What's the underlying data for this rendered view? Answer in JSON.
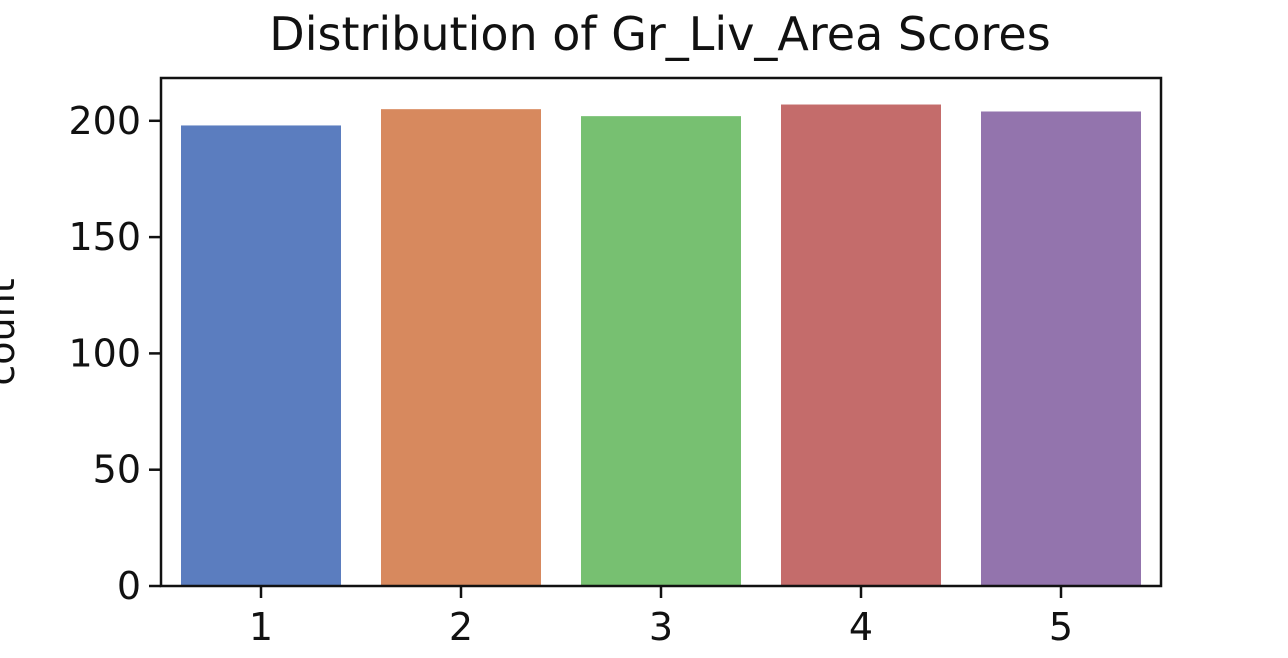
{
  "chart_data": {
    "type": "bar",
    "title": "Distribution of Gr_Liv_Area Scores",
    "xlabel": "",
    "ylabel": "count",
    "categories": [
      "1",
      "2",
      "3",
      "4",
      "5"
    ],
    "values": [
      198,
      205,
      202,
      207,
      204
    ],
    "colors": [
      "#5b7dbf",
      "#d7895e",
      "#77c071",
      "#c46c6b",
      "#9374ad"
    ],
    "ylim": [
      0,
      218.4
    ],
    "yticks": [
      0,
      50,
      100,
      150,
      200
    ],
    "grid": false
  }
}
